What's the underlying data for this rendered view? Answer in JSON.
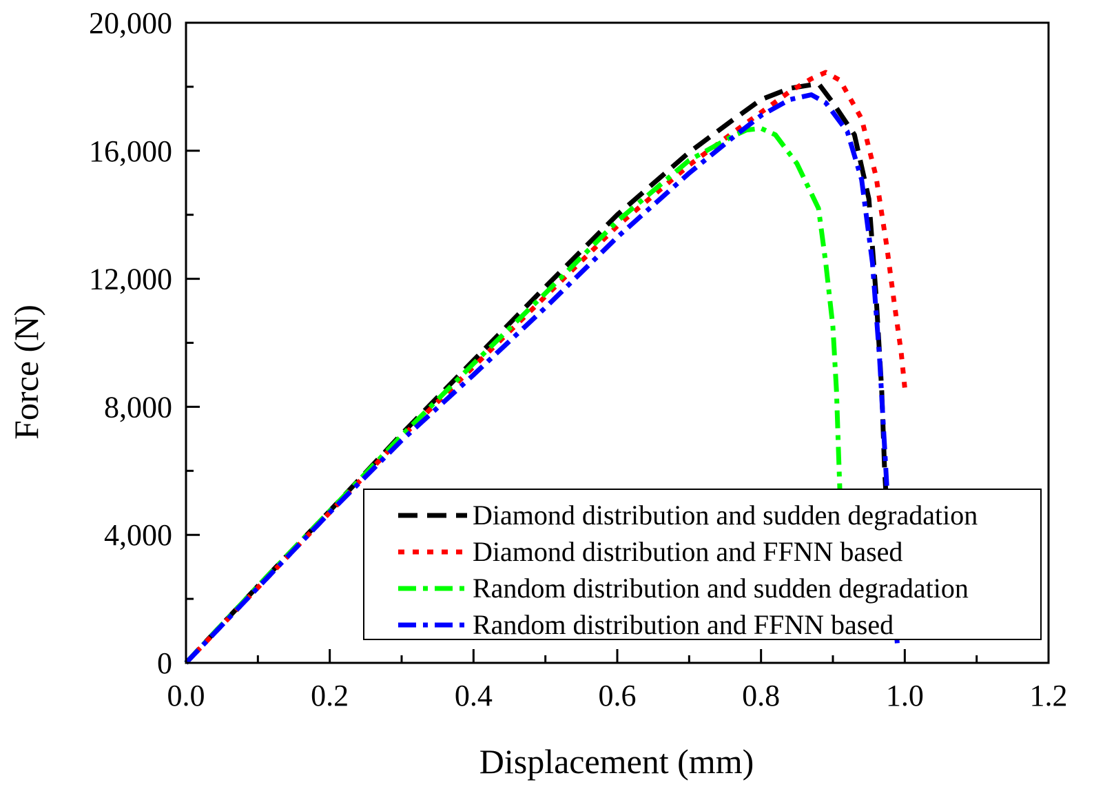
{
  "chart_data": {
    "type": "line",
    "title": "",
    "xlabel": "Displacement (mm)",
    "ylabel": "Force (N)",
    "xlim": [
      0,
      1.2
    ],
    "ylim": [
      0,
      20000
    ],
    "x_ticks": [
      "0.0",
      "0.2",
      "0.4",
      "0.6",
      "0.8",
      "1.0",
      "1.2"
    ],
    "y_ticks": [
      "0",
      "4,000",
      "8,000",
      "12,000",
      "16,000",
      "20,000"
    ],
    "x_tick_values": [
      0,
      0.2,
      0.4,
      0.6,
      0.8,
      1.0,
      1.2
    ],
    "y_tick_values": [
      0,
      4000,
      8000,
      12000,
      16000,
      20000
    ],
    "grid": false,
    "legend_position": "bottom-right",
    "series": [
      {
        "name": "Diamond distribution and sudden degradation",
        "color": "#000000",
        "style": "dash",
        "x": [
          0,
          0.1,
          0.2,
          0.3,
          0.4,
          0.5,
          0.6,
          0.7,
          0.76,
          0.8,
          0.84,
          0.88,
          0.9,
          0.93,
          0.95,
          0.96,
          0.968,
          0.972,
          0.975
        ],
        "y": [
          0,
          2400,
          4750,
          7150,
          9450,
          11750,
          14000,
          15950,
          16950,
          17600,
          17950,
          18100,
          17500,
          16500,
          14500,
          11500,
          8500,
          6000,
          4800
        ]
      },
      {
        "name": "Diamond distribution and FFNN based",
        "color": "#ff0000",
        "style": "dot",
        "x": [
          0,
          0.1,
          0.2,
          0.3,
          0.4,
          0.5,
          0.6,
          0.7,
          0.76,
          0.8,
          0.84,
          0.87,
          0.89,
          0.91,
          0.94,
          0.96,
          0.975,
          0.985,
          0.995,
          1.0
        ],
        "y": [
          0,
          2350,
          4700,
          7050,
          9250,
          11450,
          13650,
          15550,
          16550,
          17200,
          17850,
          18250,
          18450,
          18200,
          17000,
          15200,
          13000,
          11300,
          9700,
          8600
        ]
      },
      {
        "name": "Random distribution and sudden degradation",
        "color": "#00ff00",
        "style": "dashdot",
        "x": [
          0,
          0.1,
          0.2,
          0.3,
          0.4,
          0.5,
          0.6,
          0.7,
          0.76,
          0.78,
          0.8,
          0.82,
          0.85,
          0.88,
          0.89,
          0.9,
          0.905,
          0.908,
          0.91
        ],
        "y": [
          0,
          2400,
          4750,
          7100,
          9350,
          11550,
          13800,
          15700,
          16450,
          16650,
          16700,
          16500,
          15600,
          14200,
          12500,
          10500,
          8500,
          6500,
          5200
        ]
      },
      {
        "name": "Random distribution and FFNN based",
        "color": "#0000ff",
        "style": "dashdot",
        "x": [
          0,
          0.1,
          0.2,
          0.3,
          0.4,
          0.5,
          0.6,
          0.7,
          0.76,
          0.8,
          0.84,
          0.87,
          0.89,
          0.92,
          0.94,
          0.955,
          0.965,
          0.97,
          0.975,
          0.98,
          0.99
        ],
        "y": [
          0,
          2350,
          4700,
          6950,
          9000,
          11100,
          13300,
          15300,
          16400,
          17100,
          17600,
          17750,
          17500,
          16600,
          15100,
          12500,
          9500,
          7500,
          5500,
          3000,
          500
        ]
      }
    ]
  }
}
